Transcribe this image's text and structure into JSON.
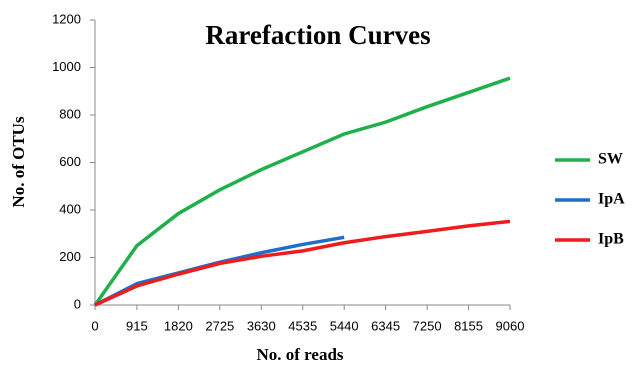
{
  "chart_data": {
    "type": "line",
    "title": "Rarefaction Curves",
    "x_label": "No. of reads",
    "y_label": "No. of OTUs",
    "x": [
      0,
      915,
      1820,
      2725,
      3630,
      4535,
      5440,
      6345,
      7250,
      8155,
      9060
    ],
    "xlim": [
      0,
      9060
    ],
    "xticks": [
      0,
      915,
      1820,
      2725,
      3630,
      4535,
      5440,
      6345,
      7250,
      8155,
      9060
    ],
    "ylim": [
      0,
      1200
    ],
    "yticks": [
      0,
      200,
      400,
      600,
      800,
      1000,
      1200
    ],
    "grid": false,
    "legend": "right",
    "series": [
      {
        "name": "SW",
        "color": "#1fb04b",
        "values": [
          0,
          250,
          385,
          485,
          570,
          645,
          720,
          770,
          835,
          895,
          955
        ]
      },
      {
        "name": "IpA",
        "color": "#1f6fc6",
        "values": [
          0,
          90,
          135,
          180,
          220,
          255,
          285,
          null,
          null,
          null,
          null
        ]
      },
      {
        "name": "IpB",
        "color": "#ee1c1c",
        "values": [
          0,
          80,
          130,
          175,
          205,
          228,
          262,
          288,
          310,
          333,
          352
        ]
      }
    ]
  }
}
